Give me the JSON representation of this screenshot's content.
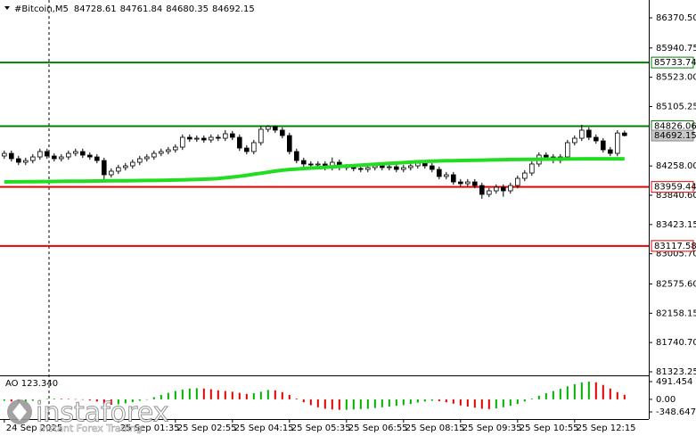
{
  "chart_data": [
    {
      "type": "candlestick",
      "symbol": "#Bitcoin,M5",
      "xlim": [
        -0.6,
        90.4
      ],
      "xticks": [
        {
          "value": 0,
          "label": "24 Sep 2025"
        },
        {
          "value": 16,
          "label": "25 Sep 01:35"
        },
        {
          "value": 24,
          "label": "25 Sep 02:55"
        },
        {
          "value": 32,
          "label": "25 Sep 04:15"
        },
        {
          "value": 40,
          "label": "25 Sep 05:35"
        },
        {
          "value": 48,
          "label": "25 Sep 06:55"
        },
        {
          "value": 56,
          "label": "25 Sep 08:15"
        },
        {
          "value": 64,
          "label": "25 Sep 09:35"
        },
        {
          "value": 72,
          "label": "25 Sep 10:55"
        },
        {
          "value": 80,
          "label": "25 Sep 12:15"
        }
      ],
      "ylim": [
        81285,
        86625
      ],
      "yticks": [
        {
          "value": 86370.5,
          "label": "86370.50"
        },
        {
          "value": 85940.75,
          "label": "85940.75"
        },
        {
          "value": 85523,
          "label": "85523.00"
        },
        {
          "value": 85105.25,
          "label": "85105.25"
        },
        {
          "value": 84258,
          "label": "84258.00"
        },
        {
          "value": 83840.6,
          "label": "83840.60"
        },
        {
          "value": 83423.15,
          "label": "83423.15"
        },
        {
          "value": 83005.7,
          "label": "83005.70"
        },
        {
          "value": 82575.6,
          "label": "82575.60"
        },
        {
          "value": 82158.15,
          "label": "82158.15"
        },
        {
          "value": 81740.7,
          "label": "81740.70"
        },
        {
          "value": 81323.25,
          "label": "81323.25"
        }
      ],
      "grid": false,
      "up_color": "#ffffff",
      "down_color": "#000000",
      "outline_color": "#000000",
      "open": [
        84400,
        84438,
        84362,
        84311,
        84336,
        84387,
        84464,
        84400,
        84362,
        84387,
        84438,
        84464,
        84413,
        84387,
        84336,
        84133,
        84184,
        84235,
        84260,
        84311,
        84362,
        84387,
        84438,
        84464,
        84489,
        84527,
        84667,
        84642,
        84654,
        84629,
        84667,
        84654,
        84718,
        84667,
        84514,
        84464,
        84591,
        84781,
        84820,
        84769,
        84692,
        84464,
        84336,
        84286,
        84273,
        84286,
        84235,
        84311,
        84235,
        84247,
        84222,
        84209,
        84235,
        84260,
        84235,
        84247,
        84209,
        84235,
        84260,
        84298,
        84260,
        84209,
        84108,
        84133,
        84031,
        84006,
        84031,
        83980,
        83853,
        83904,
        83955,
        83904,
        83980,
        84082,
        84158,
        84286,
        84413,
        84387,
        84336,
        84387,
        84591,
        84654,
        84769,
        84667,
        84616,
        84489,
        84438,
        84728.61
      ],
      "high": [
        84478,
        84478,
        84402,
        84376,
        84427,
        84504,
        84504,
        84440,
        84427,
        84478,
        84504,
        84504,
        84453,
        84427,
        84376,
        84224,
        84275,
        84300,
        84351,
        84402,
        84427,
        84478,
        84504,
        84529,
        84567,
        84707,
        84707,
        84694,
        84694,
        84707,
        84707,
        84770,
        84758,
        84707,
        84554,
        84631,
        84826,
        84840,
        84835,
        84809,
        84732,
        84504,
        84376,
        84326,
        84326,
        84326,
        84380,
        84351,
        84287,
        84287,
        84262,
        84275,
        84300,
        84300,
        84287,
        84287,
        84275,
        84300,
        84338,
        84338,
        84300,
        84249,
        84173,
        84173,
        84071,
        84071,
        84071,
        84020,
        83944,
        83995,
        83995,
        84020,
        84122,
        84198,
        84326,
        84453,
        84453,
        84427,
        84427,
        84631,
        84694,
        84845,
        84809,
        84707,
        84656,
        84529,
        84768,
        84761.84
      ],
      "low": [
        84360,
        84322,
        84271,
        84271,
        84296,
        84347,
        84360,
        84322,
        84322,
        84347,
        84398,
        84373,
        84347,
        84296,
        84060,
        84093,
        84144,
        84195,
        84220,
        84271,
        84322,
        84347,
        84398,
        84424,
        84449,
        84487,
        84602,
        84602,
        84589,
        84589,
        84614,
        84614,
        84627,
        84474,
        84424,
        84424,
        84551,
        84741,
        84729,
        84652,
        84424,
        84296,
        84246,
        84233,
        84233,
        84195,
        84195,
        84195,
        84195,
        84182,
        84169,
        84169,
        84195,
        84195,
        84195,
        84169,
        84169,
        84195,
        84220,
        84220,
        84169,
        84068,
        84068,
        83991,
        83966,
        83966,
        83940,
        83790,
        83813,
        83864,
        83820,
        83864,
        83940,
        84042,
        84118,
        84246,
        84347,
        84296,
        84296,
        84347,
        84551,
        84614,
        84627,
        84576,
        84449,
        84398,
        84398,
        84680.35
      ],
      "close": [
        84438,
        84362,
        84311,
        84336,
        84387,
        84464,
        84400,
        84362,
        84387,
        84438,
        84464,
        84413,
        84387,
        84336,
        84133,
        84184,
        84235,
        84260,
        84311,
        84362,
        84387,
        84438,
        84464,
        84489,
        84527,
        84667,
        84642,
        84654,
        84629,
        84667,
        84654,
        84718,
        84667,
        84514,
        84464,
        84591,
        84781,
        84820,
        84769,
        84692,
        84464,
        84336,
        84286,
        84273,
        84286,
        84235,
        84311,
        84235,
        84247,
        84222,
        84209,
        84235,
        84260,
        84235,
        84247,
        84209,
        84235,
        84260,
        84298,
        84260,
        84209,
        84108,
        84133,
        84031,
        84006,
        84031,
        83980,
        83853,
        83904,
        83955,
        83904,
        83980,
        84082,
        84158,
        84286,
        84413,
        84387,
        84336,
        84387,
        84591,
        84654,
        84769,
        84667,
        84616,
        84489,
        84438,
        84728.61,
        84692.15
      ],
      "moving_average": {
        "color": "#22dd22",
        "values": [
          84031,
          84032,
          84033,
          84034,
          84035,
          84036,
          84037,
          84038,
          84039,
          84040,
          84041,
          84042,
          84043,
          84044,
          84045,
          84046,
          84047,
          84048,
          84049,
          84050,
          84051,
          84052,
          84054,
          84056,
          84058,
          84060,
          84063,
          84066,
          84070,
          84075,
          84080,
          84090,
          84100,
          84112,
          84125,
          84140,
          84155,
          84170,
          84185,
          84198,
          84208,
          84215,
          84222,
          84228,
          84234,
          84240,
          84246,
          84252,
          84258,
          84264,
          84270,
          84276,
          84282,
          84288,
          84294,
          84300,
          84306,
          84312,
          84318,
          84322,
          84326,
          84330,
          84332,
          84334,
          84336,
          84338,
          84340,
          84342,
          84344,
          84346,
          84348,
          84350,
          84351,
          84352,
          84353,
          84354,
          84355,
          84356,
          84357,
          84358,
          84359,
          84360,
          84361,
          84361,
          84361,
          84361,
          84361,
          84361
        ]
      },
      "levels": [
        {
          "value": 85733.74,
          "color": "#008000"
        },
        {
          "value": 84826.06,
          "color": "#008000"
        },
        {
          "value": 83959.44,
          "color": "#ee0000"
        },
        {
          "value": 83117.58,
          "color": "#ee0000"
        }
      ]
    },
    {
      "type": "bar",
      "label": "AO 123.340",
      "ylim": [
        -546,
        639
      ],
      "yticks": [
        491.454,
        {
          "value": 0,
          "label": "0.00"
        },
        -348.647
      ],
      "up_color": "#00b000",
      "down_color": "#e00000",
      "values": [
        -40,
        -60,
        -80,
        -70,
        -40,
        -10,
        10,
        20,
        15,
        10,
        5,
        -10,
        -30,
        -60,
        -120,
        -150,
        -140,
        -110,
        -80,
        -40,
        0,
        60,
        120,
        180,
        230,
        270,
        300,
        310,
        300,
        280,
        250,
        230,
        210,
        180,
        150,
        170,
        210,
        260,
        250,
        200,
        120,
        20,
        -80,
        -160,
        -220,
        -260,
        -280,
        -290,
        -290,
        -280,
        -270,
        -260,
        -240,
        -220,
        -200,
        -180,
        -160,
        -130,
        -90,
        -60,
        -40,
        -50,
        -80,
        -120,
        -170,
        -200,
        -230,
        -260,
        -270,
        -250,
        -220,
        -180,
        -130,
        -60,
        20,
        100,
        170,
        230,
        290,
        360,
        420,
        470,
        491,
        470,
        400,
        300,
        200,
        123.34
      ]
    }
  ],
  "watermark": {
    "brand": "instaforex",
    "tagline": "Instant Forex Trading"
  }
}
